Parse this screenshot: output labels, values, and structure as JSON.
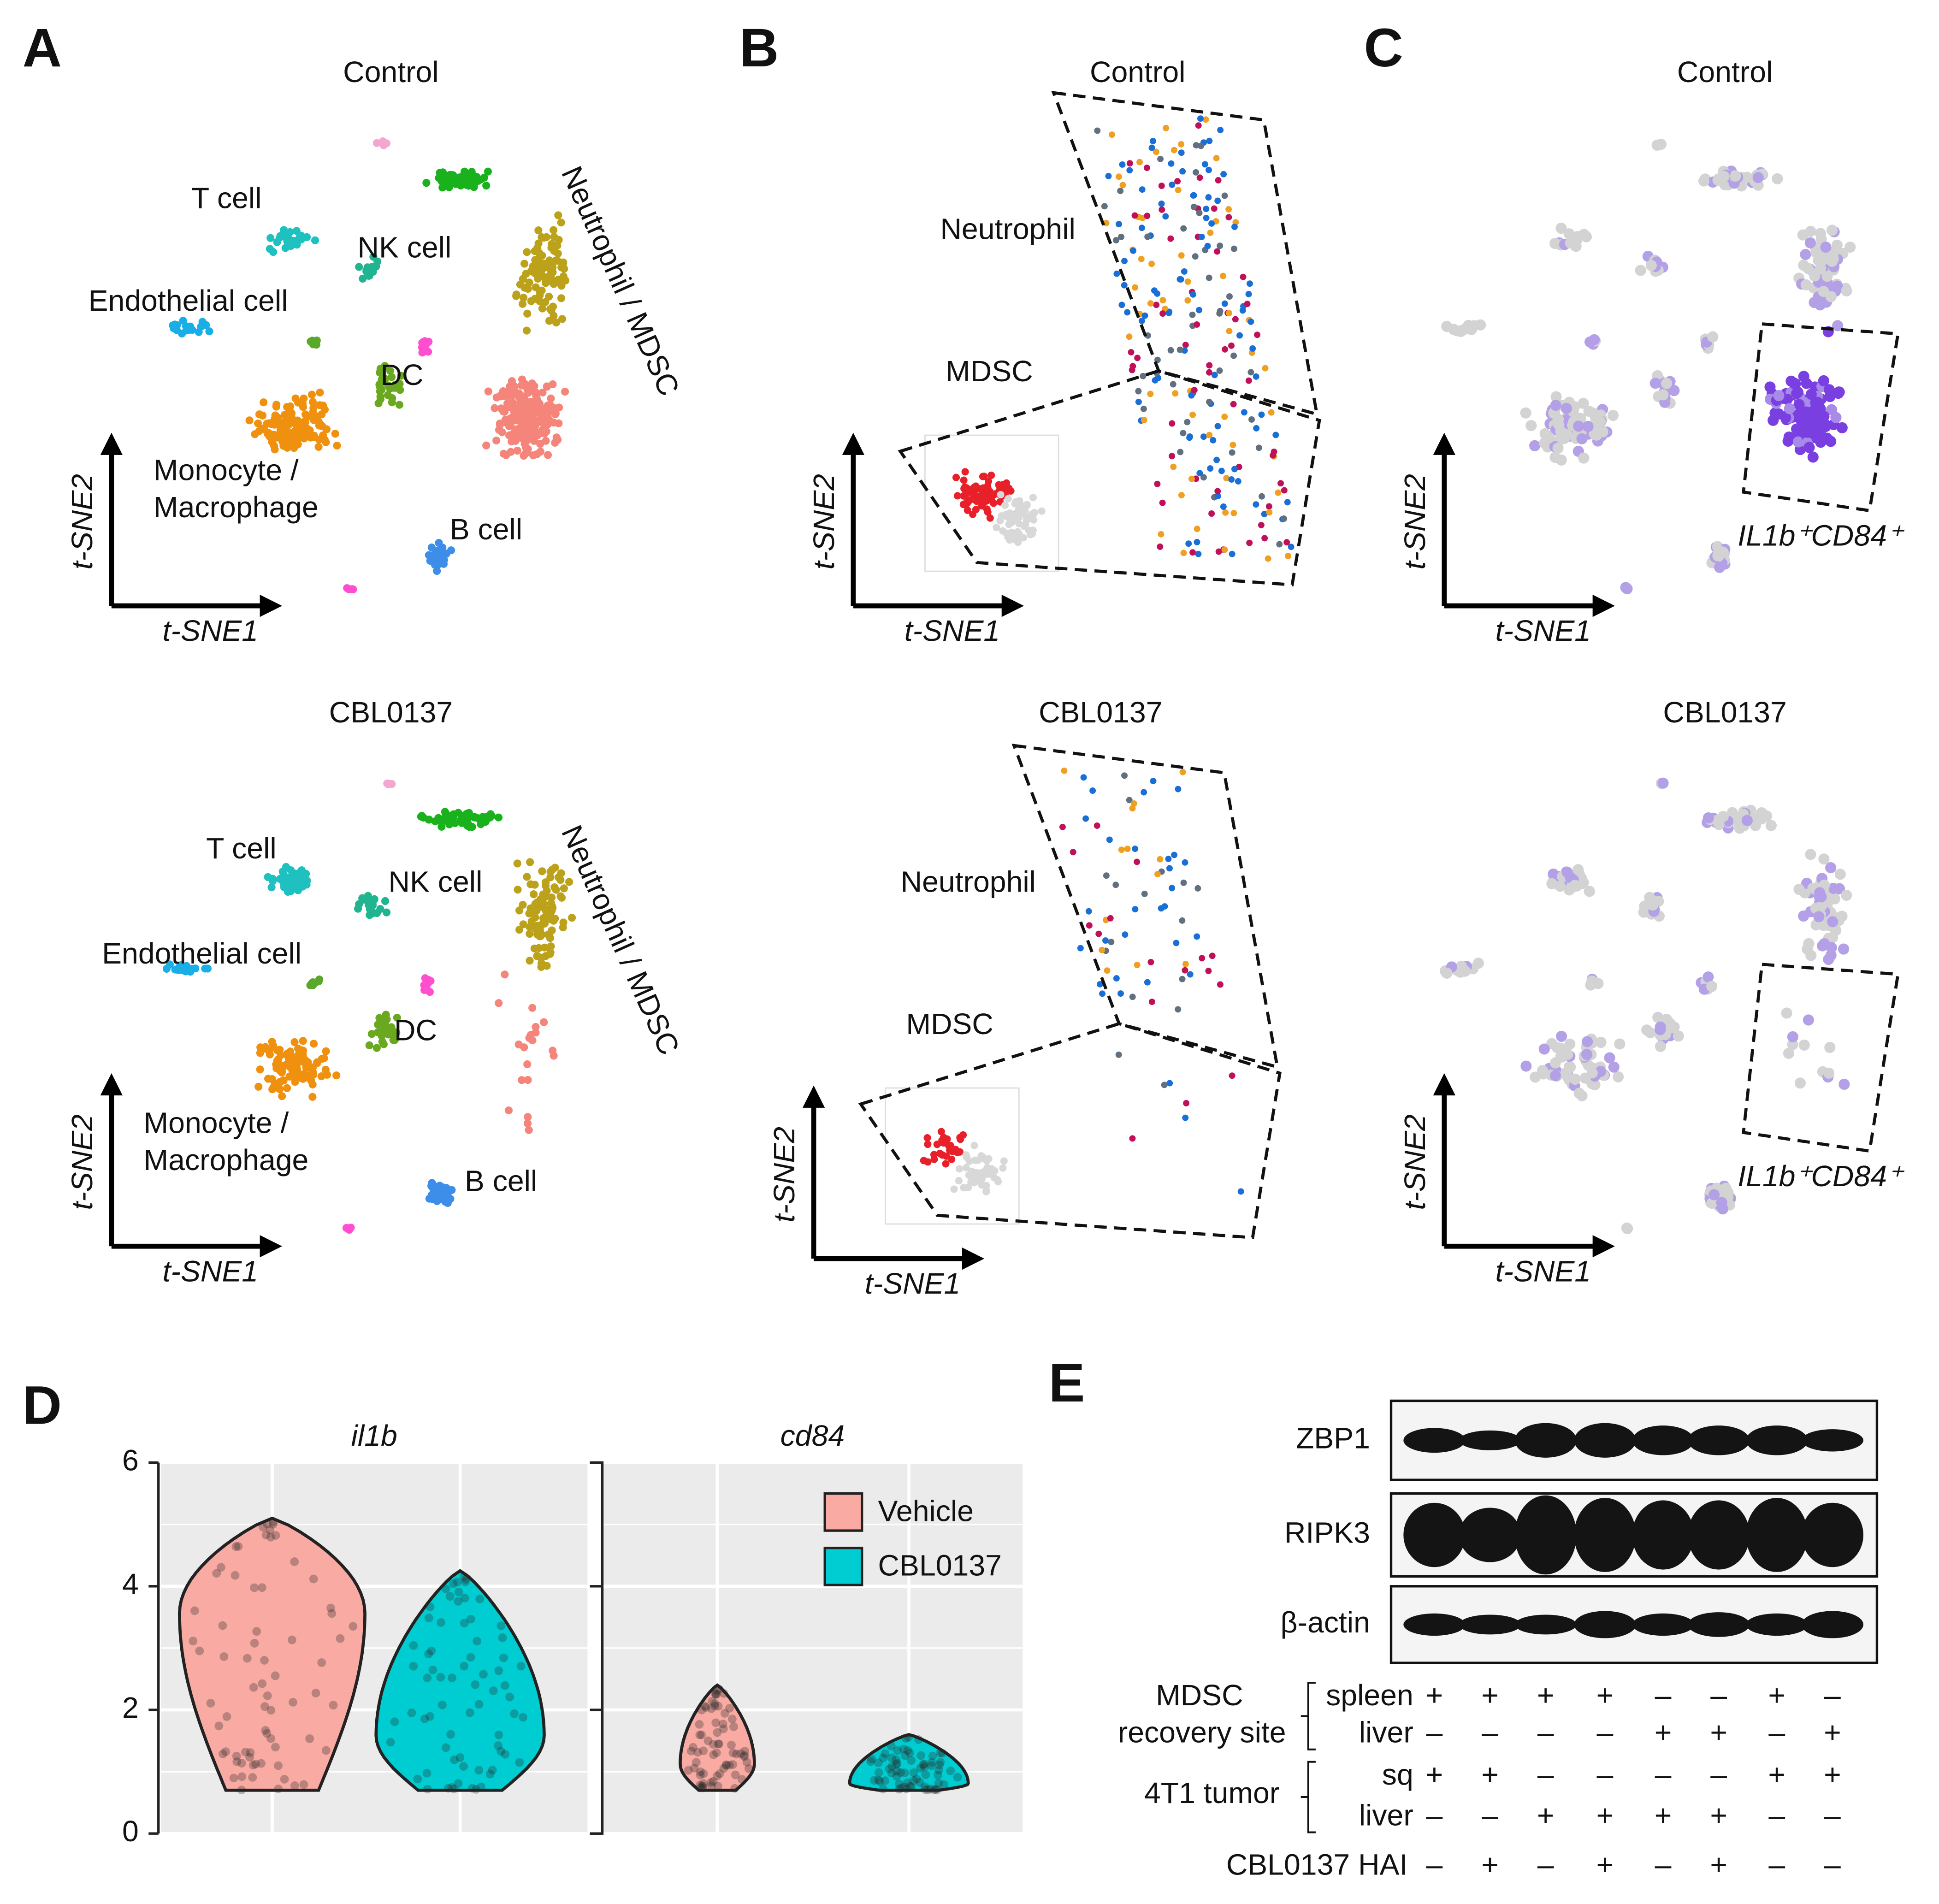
{
  "panels": {
    "A": {
      "letter": "A",
      "plots": [
        {
          "title": "Control",
          "labels": [
            "T cell",
            "NK cell",
            "Endothelial cell",
            "DC",
            "Monocyte /",
            "Macrophage",
            "B cell",
            "Neutrophil / MDSC"
          ],
          "xlabel": "t-SNE1",
          "ylabel": "t-SNE2"
        },
        {
          "title": "CBL0137",
          "labels": [
            "T cell",
            "NK cell",
            "Endothelial cell",
            "DC",
            "Monocyte /",
            "Macrophage",
            "B cell",
            "Neutrophil / MDSC"
          ],
          "xlabel": "t-SNE1",
          "ylabel": "t-SNE2"
        }
      ]
    },
    "B": {
      "letter": "B",
      "plots": [
        {
          "title": "Control",
          "labels": [
            "Neutrophil",
            "MDSC"
          ],
          "xlabel": "t-SNE1",
          "ylabel": "t-SNE2"
        },
        {
          "title": "CBL0137",
          "labels": [
            "Neutrophil",
            "MDSC"
          ],
          "xlabel": "t-SNE1",
          "ylabel": "t-SNE2"
        }
      ]
    },
    "C": {
      "letter": "C",
      "plots": [
        {
          "title": "Control",
          "label": "IL1b⁺CD84⁺",
          "xlabel": "t-SNE1",
          "ylabel": "t-SNE2"
        },
        {
          "title": "CBL0137",
          "label": "IL1b⁺CD84⁺",
          "xlabel": "t-SNE1",
          "ylabel": "t-SNE2"
        }
      ]
    },
    "D": {
      "letter": "D"
    },
    "E": {
      "letter": "E",
      "blots": [
        "ZBP1",
        "RIPK3",
        "β-actin"
      ],
      "conditions": [
        {
          "label": [
            "MDSC",
            "recovery site"
          ],
          "rows": [
            {
              "name": "spleen",
              "marks": [
                "+",
                "+",
                "+",
                "+",
                "–",
                "–",
                "+",
                "–"
              ]
            },
            {
              "name": "liver",
              "marks": [
                "–",
                "–",
                "–",
                "–",
                "+",
                "+",
                "–",
                "+"
              ]
            }
          ]
        },
        {
          "label": [
            "4T1 tumor"
          ],
          "rows": [
            {
              "name": "sq",
              "marks": [
                "+",
                "+",
                "–",
                "–",
                "–",
                "–",
                "+",
                "+"
              ]
            },
            {
              "name": "liver",
              "marks": [
                "–",
                "–",
                "+",
                "+",
                "+",
                "+",
                "–",
                "–"
              ]
            }
          ]
        },
        {
          "label": [
            "CBL0137 HAI"
          ],
          "rows": [
            {
              "marks": [
                "–",
                "+",
                "–",
                "+",
                "–",
                "+",
                "–",
                "–"
              ]
            }
          ]
        }
      ]
    }
  },
  "chart_data": {
    "type": "violin",
    "facets": [
      "il1b",
      "cd84"
    ],
    "series": [
      {
        "name": "Vehicle",
        "color": "#f8aaa3",
        "min": [
          0.7,
          0.7
        ],
        "max": [
          5.1,
          2.4
        ]
      },
      {
        "name": "CBL0137",
        "color": "#00cdd1",
        "min": [
          0.7,
          0.7
        ],
        "max": [
          4.25,
          1.6
        ]
      }
    ],
    "ylim": [
      0,
      6
    ],
    "yticks": [
      0,
      2,
      4,
      6
    ],
    "grid": true
  }
}
